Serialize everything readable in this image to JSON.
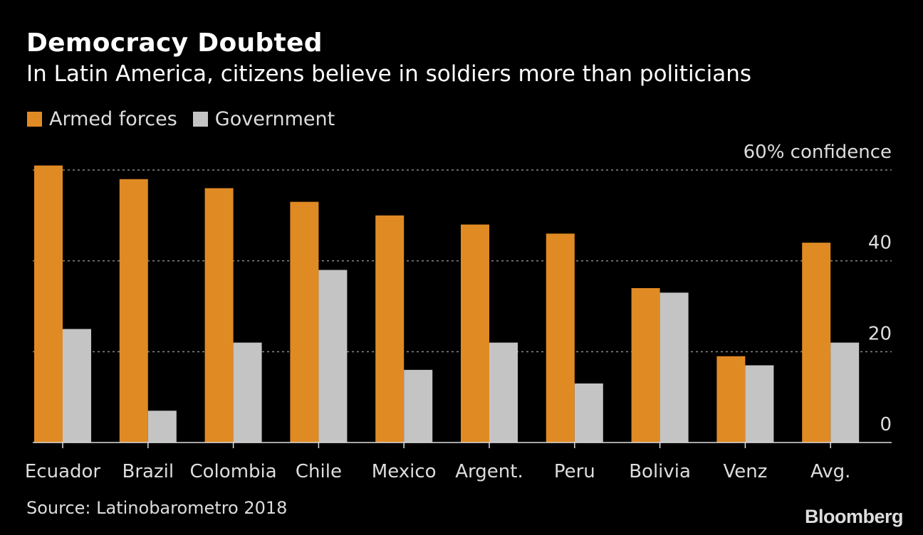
{
  "title": "Democracy Doubted",
  "subtitle": "In Latin America, citizens believe in soldiers more than politicians",
  "legend": [
    {
      "label": "Armed forces",
      "color": "#e08a24"
    },
    {
      "label": "Government",
      "color": "#c4c4c4"
    }
  ],
  "source": "Source: Latinobarometro 2018",
  "brand": "Bloomberg",
  "chart_data": {
    "type": "bar",
    "categories": [
      "Ecuador",
      "Brazil",
      "Colombia",
      "Chile",
      "Mexico",
      "Argent.",
      "Peru",
      "Bolivia",
      "Venz",
      "Avg."
    ],
    "series": [
      {
        "name": "Armed forces",
        "color": "#e08a24",
        "values": [
          61,
          58,
          56,
          53,
          50,
          48,
          46,
          34,
          19,
          44
        ]
      },
      {
        "name": "Government",
        "color": "#c4c4c4",
        "values": [
          25,
          7,
          22,
          38,
          16,
          22,
          13,
          33,
          17,
          22
        ]
      }
    ],
    "ylim": [
      0,
      60
    ],
    "yticks": [
      {
        "value": 0,
        "label": "0"
      },
      {
        "value": 20,
        "label": "20"
      },
      {
        "value": 40,
        "label": "40"
      },
      {
        "value": 60,
        "label": "60% confidence"
      }
    ],
    "grid": true,
    "legend_position": "top-left"
  }
}
